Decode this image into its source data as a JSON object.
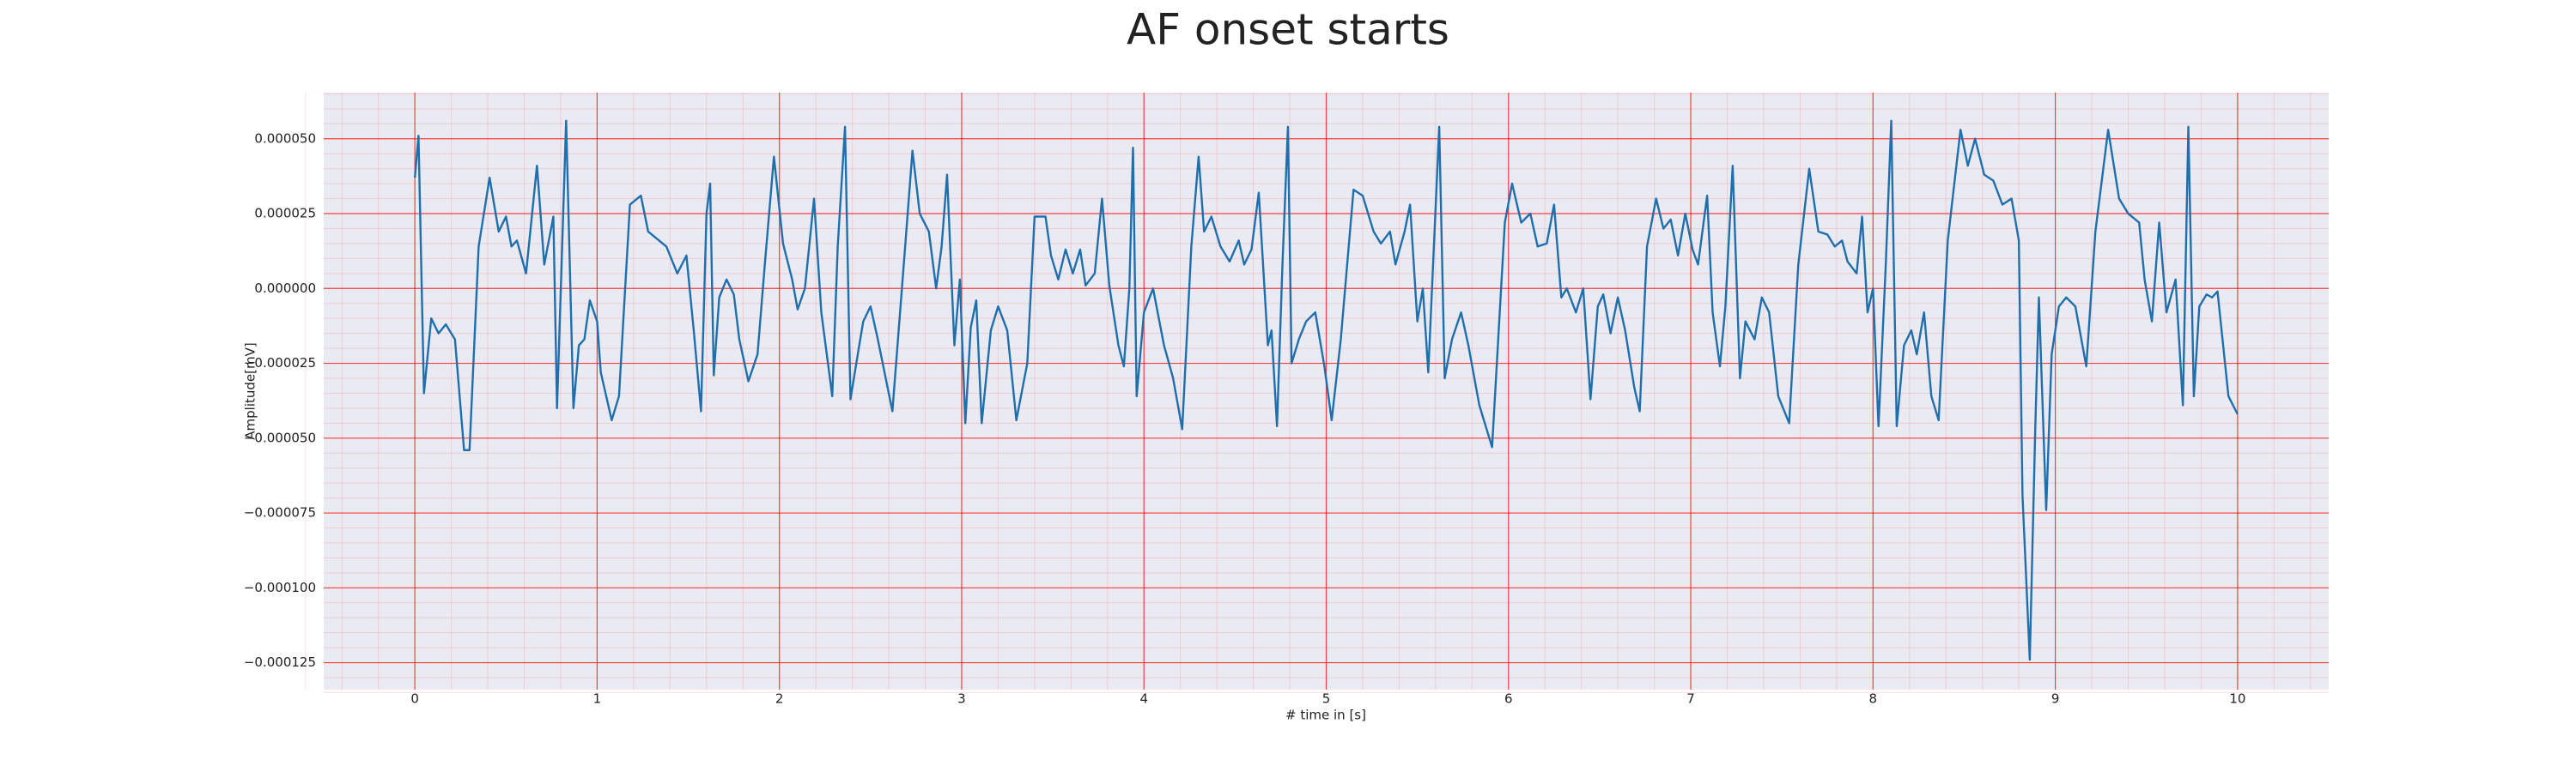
{
  "chart_data": {
    "type": "line",
    "title": "AF onset starts",
    "x_label": "# time in [s]",
    "y_label": "Amplitude[mV]",
    "color": "#1f6fad",
    "grid": true,
    "minor_grid": true,
    "grid_color": "#ff0000",
    "xlim": [
      -0.5,
      10.5
    ],
    "xticks": [
      0,
      1,
      2,
      3,
      4,
      5,
      6,
      7,
      8,
      9,
      10
    ],
    "ylim": [
      -0.000134,
      6.54e-05
    ],
    "yticks": [
      {
        "value": -0.000125,
        "label": "−0.000125"
      },
      {
        "value": -0.0001,
        "label": "−0.000100"
      },
      {
        "value": -7.5e-05,
        "label": "−0.000075"
      },
      {
        "value": -5e-05,
        "label": "−0.000050"
      },
      {
        "value": -2.5e-05,
        "label": "−0.000025"
      },
      {
        "value": 0,
        "label": "0.000000"
      },
      {
        "value": 2.5e-05,
        "label": "0.000025"
      },
      {
        "value": 5e-05,
        "label": "0.000050"
      }
    ],
    "x": [
      0,
      0.02,
      0.05,
      0.09,
      0.13,
      0.17,
      0.22,
      0.27,
      0.3,
      0.35,
      0.41,
      0.46,
      0.5,
      0.53,
      0.56,
      0.61,
      0.67,
      0.71,
      0.76,
      0.78,
      0.83,
      0.87,
      0.9,
      0.93,
      0.96,
      1,
      1.02,
      1.08,
      1.12,
      1.18,
      1.24,
      1.28,
      1.34,
      1.38,
      1.44,
      1.49,
      1.53,
      1.57,
      1.6,
      1.62,
      1.64,
      1.67,
      1.71,
      1.75,
      1.78,
      1.83,
      1.88,
      1.92,
      1.97,
      2.02,
      2.07,
      2.1,
      2.14,
      2.19,
      2.23,
      2.29,
      2.32,
      2.36,
      2.39,
      2.43,
      2.46,
      2.5,
      2.54,
      2.62,
      2.69,
      2.73,
      2.77,
      2.82,
      2.86,
      2.89,
      2.92,
      2.96,
      2.99,
      3.02,
      3.05,
      3.08,
      3.11,
      3.16,
      3.2,
      3.25,
      3.3,
      3.36,
      3.4,
      3.46,
      3.49,
      3.53,
      3.57,
      3.61,
      3.65,
      3.68,
      3.73,
      3.77,
      3.81,
      3.86,
      3.89,
      3.92,
      3.94,
      3.96,
      4,
      4.05,
      4.11,
      4.16,
      4.21,
      4.26,
      4.3,
      4.33,
      4.37,
      4.42,
      4.47,
      4.52,
      4.55,
      4.59,
      4.63,
      4.68,
      4.7,
      4.73,
      4.76,
      4.79,
      4.81,
      4.85,
      4.89,
      4.94,
      4.99,
      5.03,
      5.08,
      5.15,
      5.2,
      5.26,
      5.3,
      5.35,
      5.38,
      5.43,
      5.46,
      5.5,
      5.53,
      5.56,
      5.62,
      5.65,
      5.69,
      5.74,
      5.78,
      5.84,
      5.91,
      5.98,
      6.02,
      6.07,
      6.12,
      6.16,
      6.21,
      6.25,
      6.29,
      6.32,
      6.37,
      6.41,
      6.45,
      6.49,
      6.52,
      6.56,
      6.6,
      6.64,
      6.69,
      6.72,
      6.76,
      6.81,
      6.85,
      6.89,
      6.93,
      6.97,
      7.01,
      7.04,
      7.09,
      7.12,
      7.16,
      7.19,
      7.23,
      7.27,
      7.3,
      7.35,
      7.39,
      7.43,
      7.48,
      7.54,
      7.59,
      7.65,
      7.7,
      7.75,
      7.79,
      7.83,
      7.86,
      7.91,
      7.94,
      7.97,
      8,
      8.03,
      8.07,
      8.1,
      8.13,
      8.17,
      8.21,
      8.24,
      8.28,
      8.32,
      8.36,
      8.41,
      8.48,
      8.52,
      8.56,
      8.61,
      8.66,
      8.71,
      8.76,
      8.8,
      8.82,
      8.86,
      8.89,
      8.91,
      8.95,
      8.98,
      9.02,
      9.06,
      9.11,
      9.17,
      9.22,
      9.29,
      9.35,
      9.4,
      9.46,
      9.49,
      9.53,
      9.57,
      9.61,
      9.66,
      9.7,
      9.73,
      9.76,
      9.79,
      9.83,
      9.86,
      9.89,
      9.95,
      10
    ],
    "values": [
      3.7e-05,
      5.1e-05,
      -3.5e-05,
      -1e-05,
      -1.5e-05,
      -1.2e-05,
      -1.7e-05,
      -5.4e-05,
      -5.4e-05,
      1.4e-05,
      3.7e-05,
      1.9e-05,
      2.4e-05,
      1.4e-05,
      1.6e-05,
      5e-06,
      4.1e-05,
      8e-06,
      2.4e-05,
      -4e-05,
      5.6e-05,
      -4e-05,
      -1.9e-05,
      -1.7e-05,
      -4e-06,
      -1.1e-05,
      -2.8e-05,
      -4.4e-05,
      -3.6e-05,
      2.8e-05,
      3.1e-05,
      1.9e-05,
      1.6e-05,
      1.4e-05,
      5e-06,
      1.1e-05,
      -1.4e-05,
      -4.1e-05,
      2.5e-05,
      3.5e-05,
      -2.9e-05,
      -3e-06,
      3e-06,
      -2e-06,
      -1.7e-05,
      -3.1e-05,
      -2.2e-05,
      8e-06,
      4.4e-05,
      1.5e-05,
      3e-06,
      -7e-06,
      0,
      3e-05,
      -8e-06,
      -3.6e-05,
      1.4e-05,
      5.4e-05,
      -3.7e-05,
      -2.2e-05,
      -1.1e-05,
      -6e-06,
      -1.7e-05,
      -4.1e-05,
      1.4e-05,
      4.6e-05,
      2.5e-05,
      1.9e-05,
      0,
      1.4e-05,
      3.8e-05,
      -1.9e-05,
      3e-06,
      -4.5e-05,
      -1.3e-05,
      -4e-06,
      -4.5e-05,
      -1.4e-05,
      -6e-06,
      -1.4e-05,
      -4.4e-05,
      -2.5e-05,
      2.4e-05,
      2.4e-05,
      1.1e-05,
      3e-06,
      1.3e-05,
      5e-06,
      1.3e-05,
      1e-06,
      5e-06,
      3e-05,
      1e-06,
      -1.9e-05,
      -2.6e-05,
      0,
      4.7e-05,
      -3.6e-05,
      -8e-06,
      0,
      -1.9e-05,
      -3e-05,
      -4.7e-05,
      1.4e-05,
      4.4e-05,
      1.9e-05,
      2.4e-05,
      1.4e-05,
      9e-06,
      1.6e-05,
      8e-06,
      1.3e-05,
      3.2e-05,
      -1.9e-05,
      -1.4e-05,
      -4.6e-05,
      8e-06,
      5.4e-05,
      -2.5e-05,
      -1.7e-05,
      -1.1e-05,
      -8e-06,
      -2.6e-05,
      -4.4e-05,
      -1.7e-05,
      3.3e-05,
      3.1e-05,
      1.9e-05,
      1.5e-05,
      1.9e-05,
      8e-06,
      1.9e-05,
      2.8e-05,
      -1.1e-05,
      0,
      -2.8e-05,
      5.4e-05,
      -3e-05,
      -1.7e-05,
      -8e-06,
      -1.9e-05,
      -3.9e-05,
      -5.3e-05,
      2.2e-05,
      3.5e-05,
      2.2e-05,
      2.5e-05,
      1.4e-05,
      1.5e-05,
      2.8e-05,
      -3e-06,
      0,
      -8e-06,
      0,
      -3.7e-05,
      -6e-06,
      -2e-06,
      -1.5e-05,
      -3e-06,
      -1.4e-05,
      -3.3e-05,
      -4.1e-05,
      1.4e-05,
      3e-05,
      2e-05,
      2.3e-05,
      1.1e-05,
      2.5e-05,
      1.3e-05,
      8e-06,
      3.1e-05,
      -8e-06,
      -2.6e-05,
      -6e-06,
      4.1e-05,
      -3e-05,
      -1.1e-05,
      -1.7e-05,
      -3e-06,
      -8e-06,
      -3.6e-05,
      -4.5e-05,
      8e-06,
      4e-05,
      1.9e-05,
      1.8e-05,
      1.4e-05,
      1.6e-05,
      9e-06,
      5e-06,
      2.4e-05,
      -8e-06,
      0,
      -4.6e-05,
      8e-06,
      5.6e-05,
      -4.6e-05,
      -1.9e-05,
      -1.4e-05,
      -2.2e-05,
      -8e-06,
      -3.6e-05,
      -4.4e-05,
      1.6e-05,
      5.3e-05,
      4.1e-05,
      5e-05,
      3.8e-05,
      3.6e-05,
      2.8e-05,
      3e-05,
      1.6e-05,
      -6.9e-05,
      -0.000124,
      -4.7e-05,
      -3e-06,
      -7.4e-05,
      -2.2e-05,
      -6e-06,
      -3e-06,
      -6e-06,
      -2.6e-05,
      1.9e-05,
      5.3e-05,
      3e-05,
      2.5e-05,
      2.2e-05,
      3e-06,
      -1.1e-05,
      2.2e-05,
      -8e-06,
      3e-06,
      -3.9e-05,
      5.4e-05,
      -3.6e-05,
      -6e-06,
      -2e-06,
      -3e-06,
      -1e-06,
      -3.6e-05,
      -4.2e-05
    ]
  }
}
